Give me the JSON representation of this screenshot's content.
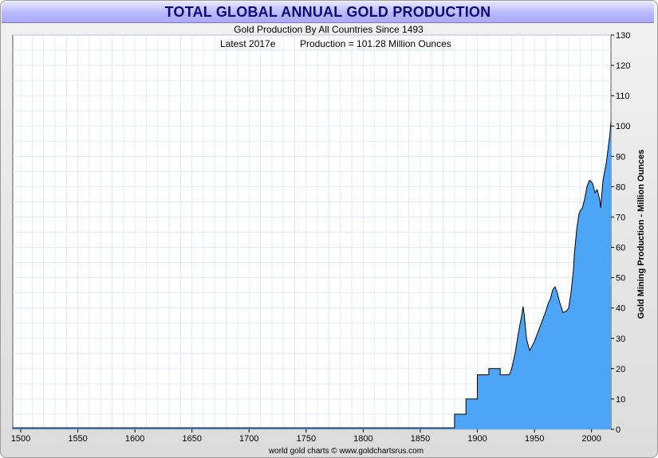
{
  "title": "TOTAL GLOBAL ANNUAL GOLD PRODUCTION",
  "subtitle": "Gold Production By All Countries Since 1493",
  "info_latest": "Latest 2017e",
  "info_production": "Production = 101.28 Million Ounces",
  "footer": "world gold charts © www.goldchartsrus.com",
  "colors": {
    "fill": "#4da6f5",
    "stroke": "#000000",
    "grid": "#d8e6f5",
    "title": "#0a0a7c"
  },
  "chart_data": {
    "type": "area",
    "title": "TOTAL GLOBAL ANNUAL GOLD PRODUCTION",
    "subtitle": "Gold Production By All Countries Since 1493",
    "xlabel": "",
    "ylabel": "Gold Mining Production - Million Ounces",
    "xlim": [
      1493,
      2017
    ],
    "ylim": [
      0,
      130
    ],
    "x_ticks": [
      1500,
      1550,
      1600,
      1650,
      1700,
      1750,
      1800,
      1850,
      1900,
      1950,
      2000
    ],
    "y_ticks": [
      0,
      10,
      20,
      30,
      40,
      50,
      60,
      70,
      80,
      90,
      100,
      110,
      120,
      130
    ],
    "y_axis_side": "right",
    "grid": true,
    "legend": "none",
    "series": [
      {
        "x": [
          1493,
          1880,
          1880,
          1890,
          1890,
          1900,
          1900,
          1910,
          1910,
          1920,
          1920,
          1928,
          1930,
          1933,
          1936,
          1939,
          1940,
          1941,
          1943,
          1945,
          1946,
          1950,
          1953,
          1955,
          1958,
          1960,
          1962,
          1964,
          1966,
          1968,
          1970,
          1972,
          1975,
          1978,
          1980,
          1982,
          1984,
          1985,
          1987,
          1989,
          1990,
          1992,
          1994,
          1996,
          1998,
          1999,
          2001,
          2003,
          2005,
          2007,
          2008,
          2010,
          2012,
          2013,
          2015,
          2016,
          2017
        ],
        "y": [
          0.5,
          0.5,
          5.0,
          5.0,
          10.0,
          10.0,
          18.0,
          18.0,
          20.0,
          20.0,
          18.0,
          18.0,
          20.0,
          25.0,
          32.0,
          38.0,
          40.5,
          38.0,
          30.0,
          27.0,
          26.0,
          29.0,
          32.0,
          34.0,
          37.0,
          39.0,
          41.5,
          43.0,
          46.0,
          47.0,
          45.0,
          42.0,
          38.5,
          39.0,
          40.0,
          45.0,
          52.0,
          58.0,
          66.0,
          71.0,
          72.0,
          73.0,
          76.0,
          80.0,
          82.0,
          82.0,
          81.0,
          78.0,
          79.0,
          76.0,
          73.0,
          82.0,
          86.0,
          88.0,
          94.0,
          97.0,
          101.28
        ]
      }
    ]
  }
}
